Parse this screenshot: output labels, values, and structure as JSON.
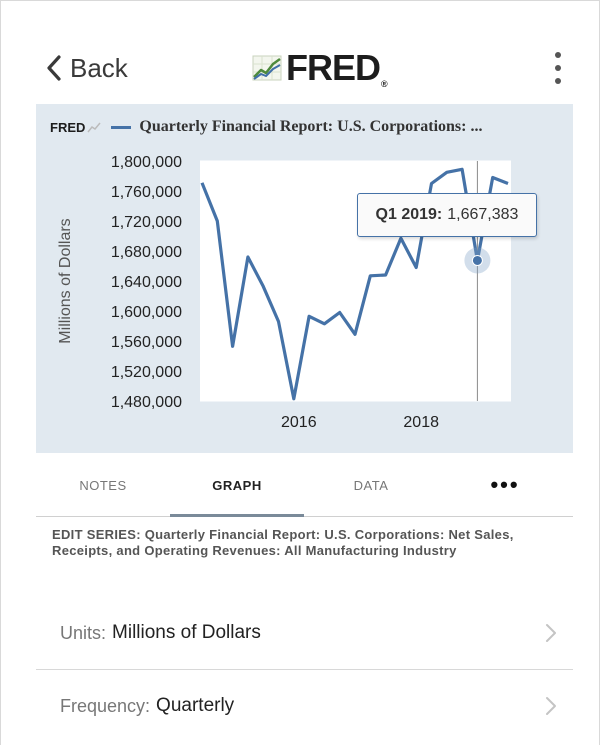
{
  "header": {
    "back_label": "Back",
    "logo_text": "FRED",
    "logo_mark": "®"
  },
  "graph_panel": {
    "mini_logo": "FRED",
    "title": "Quarterly Financial Report: U.S. Corporations: ..."
  },
  "tooltip": {
    "period": "Q1 2019:",
    "value": "1,667,383"
  },
  "chart_data": {
    "type": "line",
    "ylabel": "Millions of Dollars",
    "ylim": [
      1480000,
      1800000
    ],
    "yticks": [
      "1,800,000",
      "1,760,000",
      "1,720,000",
      "1,680,000",
      "1,640,000",
      "1,600,000",
      "1,560,000",
      "1,520,000",
      "1,480,000"
    ],
    "xticks": [
      "2016",
      "2018"
    ],
    "series": [
      {
        "x": [
          "Q3 2014",
          "Q4 2014",
          "Q1 2015",
          "Q2 2015",
          "Q3 2015",
          "Q4 2015",
          "Q1 2016",
          "Q2 2016",
          "Q3 2016",
          "Q4 2016",
          "Q1 2017",
          "Q2 2017",
          "Q3 2017",
          "Q4 2017",
          "Q1 2018",
          "Q2 2018",
          "Q3 2018",
          "Q4 2018",
          "Q1 2019",
          "Q2 2019",
          "Q3 2019"
        ],
        "values": [
          1771000,
          1720000,
          1553000,
          1672000,
          1633000,
          1586000,
          1483000,
          1593000,
          1583000,
          1598000,
          1569000,
          1647000,
          1648000,
          1697000,
          1658000,
          1770000,
          1785000,
          1789000,
          1667383,
          1778000,
          1770000
        ],
        "color": "#4572a7"
      }
    ],
    "highlight": {
      "x": "Q1 2019",
      "value": 1667383
    },
    "background": "#e1e9f0",
    "plot_background": "#ffffff"
  },
  "tabs": [
    {
      "label": "NOTES"
    },
    {
      "label": "GRAPH",
      "active": true
    },
    {
      "label": "DATA"
    },
    {
      "label": "•••"
    }
  ],
  "edit_series": "EDIT SERIES: Quarterly Financial Report: U.S. Corporations: Net Sales, Receipts, and Operating Revenues: All Manufacturing Industry",
  "settings": {
    "units": {
      "label": "Units:",
      "value": "Millions of Dollars"
    },
    "frequency": {
      "label": "Frequency:",
      "value": "Quarterly"
    }
  }
}
